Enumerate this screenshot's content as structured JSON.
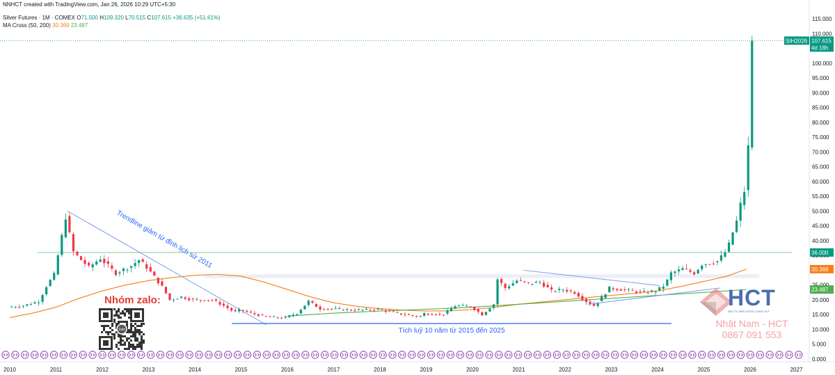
{
  "header": {
    "credit": "NNHCT created with TradingView.com, Jan 26, 2026 10:29 UTC+5:30",
    "symbol_line": "Silver Futures · 1M · COMEX",
    "ohlc": {
      "o_label": "O",
      "o": "71.500",
      "h_label": "H",
      "h": "109.320",
      "l_label": "L",
      "l": "70.515",
      "c_label": "C",
      "c": "107.615",
      "change": "+36.635 (+51.61%)"
    },
    "ma_label": "MA Cross (50, 200)",
    "ma50_value": "30.369",
    "ma200_value": "23.487"
  },
  "colors": {
    "up": "#089981",
    "down": "#f23645",
    "ma50": "#f57f17",
    "ma200": "#4caf50",
    "trend": "#2962ff",
    "resistance": "#81c995"
  },
  "chart_data": {
    "type": "candlestick",
    "timeframe": "monthly",
    "ylim": [
      0,
      117
    ],
    "y_ticks": [
      "0.000",
      "5.000",
      "10.000",
      "15.000",
      "20.000",
      "25.000",
      "30.000",
      "35.000",
      "40.000",
      "45.000",
      "50.000",
      "55.000",
      "60.000",
      "65.000",
      "70.000",
      "75.000",
      "80.000",
      "85.000",
      "90.000",
      "95.000",
      "100.000",
      "105.000",
      "110.000",
      "115.000"
    ],
    "x_labels": [
      "2010",
      "2011",
      "2012",
      "2013",
      "2014",
      "2015",
      "2016",
      "2017",
      "2018",
      "2019",
      "2020",
      "2021",
      "2022",
      "2023",
      "2024",
      "2025",
      "2026",
      "2027"
    ],
    "price_path": [
      [
        2010.0,
        17.5
      ],
      [
        2010.33,
        18.0
      ],
      [
        2010.67,
        19.5
      ],
      [
        2010.83,
        24.5
      ],
      [
        2011.0,
        28.5
      ],
      [
        2011.25,
        48.0
      ],
      [
        2011.42,
        36.0
      ],
      [
        2011.75,
        31.0
      ],
      [
        2012.0,
        34.0
      ],
      [
        2012.33,
        29.0
      ],
      [
        2012.67,
        31.5
      ],
      [
        2012.83,
        33.5
      ],
      [
        2013.0,
        31.0
      ],
      [
        2013.33,
        24.5
      ],
      [
        2013.5,
        20.0
      ],
      [
        2013.75,
        21.0
      ],
      [
        2014.0,
        20.0
      ],
      [
        2014.42,
        20.0
      ],
      [
        2014.67,
        18.0
      ],
      [
        2014.9,
        15.8
      ],
      [
        2015.0,
        16.6
      ],
      [
        2015.5,
        14.5
      ],
      [
        2015.95,
        13.8
      ],
      [
        2016.25,
        15.5
      ],
      [
        2016.5,
        19.5
      ],
      [
        2016.75,
        17.0
      ],
      [
        2017.0,
        17.0
      ],
      [
        2017.5,
        16.5
      ],
      [
        2018.0,
        16.8
      ],
      [
        2018.5,
        15.2
      ],
      [
        2018.9,
        14.3
      ],
      [
        2019.0,
        15.4
      ],
      [
        2019.4,
        15.0
      ],
      [
        2019.67,
        18.0
      ],
      [
        2020.0,
        17.8
      ],
      [
        2020.25,
        15.0
      ],
      [
        2020.5,
        18.5
      ],
      [
        2020.58,
        27.0
      ],
      [
        2020.75,
        24.0
      ],
      [
        2021.0,
        26.5
      ],
      [
        2021.25,
        25.5
      ],
      [
        2021.5,
        26.0
      ],
      [
        2021.75,
        23.0
      ],
      [
        2022.0,
        23.5
      ],
      [
        2022.25,
        22.5
      ],
      [
        2022.5,
        19.5
      ],
      [
        2022.67,
        18.0
      ],
      [
        2022.9,
        22.0
      ],
      [
        2023.0,
        24.0
      ],
      [
        2023.5,
        23.0
      ],
      [
        2023.75,
        22.5
      ],
      [
        2024.0,
        23.0
      ],
      [
        2024.2,
        25.0
      ],
      [
        2024.33,
        29.0
      ],
      [
        2024.6,
        30.5
      ],
      [
        2024.83,
        29.0
      ],
      [
        2025.0,
        32.0
      ],
      [
        2025.33,
        33.0
      ],
      [
        2025.5,
        36.0
      ],
      [
        2025.58,
        38.5
      ],
      [
        2025.67,
        43.0
      ],
      [
        2025.75,
        46.5
      ],
      [
        2025.83,
        52.0
      ],
      [
        2025.92,
        57.0
      ],
      [
        2026.0,
        71.5
      ],
      [
        2026.08,
        107.615
      ]
    ],
    "last_candle": {
      "open": 71.5,
      "high": 109.32,
      "low": 70.515,
      "close": 107.615
    },
    "ma50": [
      [
        2010.0,
        14.0
      ],
      [
        2010.5,
        15.5
      ],
      [
        2011.0,
        17.5
      ],
      [
        2011.5,
        20.5
      ],
      [
        2012.0,
        23.0
      ],
      [
        2012.5,
        25.0
      ],
      [
        2013.0,
        26.5
      ],
      [
        2013.5,
        27.5
      ],
      [
        2014.0,
        28.3
      ],
      [
        2014.5,
        28.6
      ],
      [
        2015.0,
        28.0
      ],
      [
        2015.5,
        26.0
      ],
      [
        2016.0,
        23.5
      ],
      [
        2016.5,
        21.0
      ],
      [
        2017.0,
        19.0
      ],
      [
        2017.5,
        17.8
      ],
      [
        2018.0,
        17.0
      ],
      [
        2018.5,
        16.5
      ],
      [
        2019.0,
        16.2
      ],
      [
        2019.5,
        16.3
      ],
      [
        2020.0,
        16.7
      ],
      [
        2020.5,
        17.5
      ],
      [
        2021.0,
        18.5
      ],
      [
        2021.5,
        19.3
      ],
      [
        2022.0,
        20.0
      ],
      [
        2022.5,
        20.8
      ],
      [
        2023.0,
        21.5
      ],
      [
        2023.5,
        22.2
      ],
      [
        2024.0,
        23.0
      ],
      [
        2024.5,
        24.5
      ],
      [
        2025.0,
        26.2
      ],
      [
        2025.5,
        28.0
      ],
      [
        2025.92,
        30.369
      ]
    ],
    "ma200": [
      [
        2016.0,
        14.5
      ],
      [
        2017.0,
        15.5
      ],
      [
        2018.0,
        16.2
      ],
      [
        2019.0,
        16.8
      ],
      [
        2020.0,
        17.5
      ],
      [
        2021.0,
        18.5
      ],
      [
        2022.0,
        19.5
      ],
      [
        2023.0,
        20.5
      ],
      [
        2024.0,
        21.5
      ],
      [
        2025.0,
        22.5
      ],
      [
        2025.92,
        23.487
      ]
    ],
    "trendline_down": {
      "from": [
        2011.25,
        50.0
      ],
      "to": [
        2015.55,
        11.5
      ]
    },
    "triangle_top": {
      "from": [
        2021.1,
        30.0
      ],
      "to": [
        2024.05,
        24.8
      ]
    },
    "triangle_bottom": {
      "from": [
        2022.5,
        18.5
      ],
      "to": [
        2025.35,
        24.0
      ]
    },
    "support_line": {
      "from": [
        2014.8,
        12.0
      ],
      "to": [
        2024.3,
        12.0
      ]
    },
    "resistance_line": {
      "from": [
        2010.6,
        36.0
      ],
      "to": [
        2026.9,
        36.0
      ]
    },
    "mid_band": {
      "from": [
        2014.2,
        28.0
      ],
      "to": [
        2026.2,
        28.0
      ]
    },
    "current_price_line": 107.615,
    "price_tags": [
      {
        "symbol": "SIH2026",
        "value": "107.615",
        "countdown": "4d 18h",
        "y": 107.615,
        "color": "#089981"
      },
      {
        "value": "36.000",
        "y": 36.0,
        "color": "#089981"
      },
      {
        "value": "30.369",
        "y": 30.369,
        "color": "#f57f17"
      },
      {
        "value": "23.487",
        "y": 23.487,
        "color": "#4caf50"
      }
    ],
    "annotations": {
      "trendline": "Trendline giảm từ đỉnh lịch sử 2011",
      "accumulation": "Tích luỹ 10 năm từ 2015 đến 2025"
    }
  },
  "promo": {
    "zalo_title": "Nhóm zalo:",
    "qr_center": "Zalo",
    "brand": "HCT",
    "brand_sub": "ĐẦU TƯ BỀN VỮNG CÙNG HCT",
    "author_name": "Nhật Nam - HCT",
    "author_phone": "0867 091 553"
  }
}
